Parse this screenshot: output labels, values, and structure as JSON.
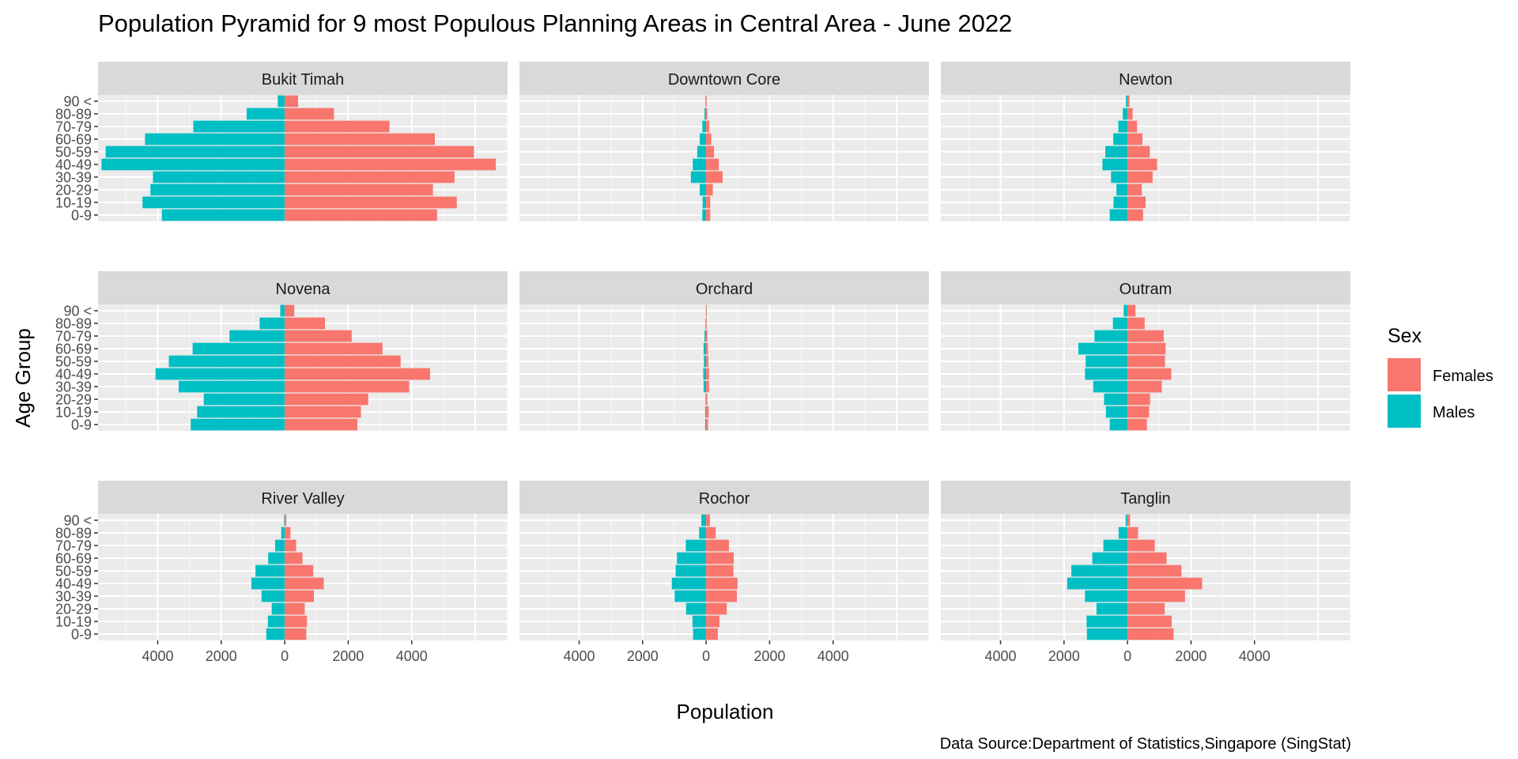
{
  "chart_data": {
    "type": "bar",
    "title": "Population Pyramid for 9 most Populous Planning Areas in Central Area - June 2022",
    "xlabel": "Population",
    "ylabel": "Age Group",
    "caption": "Data Source:Department of Statistics,Singapore (SingStat)",
    "orientation": "horizontal-diverging",
    "grid": true,
    "legend_position": "right",
    "legend": {
      "title": "Sex",
      "entries": [
        {
          "name": "Females",
          "color": "#F8766D"
        },
        {
          "name": "Males",
          "color": "#00BFC4"
        }
      ]
    },
    "x_ticks": [
      -4000,
      -2000,
      0,
      2000,
      4000
    ],
    "x_tick_labels": [
      "4000",
      "2000",
      "0",
      "2000",
      "4000"
    ],
    "xlim": [
      -5880,
      7020
    ],
    "categories": [
      "0-9",
      "10-19",
      "20-29",
      "30-39",
      "40-49",
      "50-59",
      "60-69",
      "70-79",
      "80-89",
      "90 <"
    ],
    "panels": [
      {
        "name": "Bukit Timah",
        "males": [
          3870,
          4480,
          4230,
          4150,
          5770,
          5640,
          4400,
          2880,
          1200,
          220
        ],
        "females": [
          4800,
          5420,
          4670,
          5350,
          6650,
          5960,
          4730,
          3300,
          1550,
          420
        ]
      },
      {
        "name": "Downtown Core",
        "males": [
          120,
          110,
          200,
          480,
          420,
          280,
          200,
          120,
          50,
          20
        ],
        "females": [
          130,
          130,
          210,
          520,
          400,
          250,
          160,
          100,
          40,
          15
        ]
      },
      {
        "name": "Newton",
        "males": [
          560,
          440,
          350,
          520,
          790,
          700,
          450,
          290,
          150,
          50
        ],
        "females": [
          490,
          570,
          450,
          790,
          930,
          700,
          470,
          300,
          160,
          60
        ]
      },
      {
        "name": "Novena",
        "males": [
          2960,
          2760,
          2550,
          3340,
          4070,
          3650,
          2900,
          1740,
          790,
          140
        ],
        "females": [
          2290,
          2400,
          2630,
          3920,
          4580,
          3650,
          3080,
          2110,
          1270,
          300
        ]
      },
      {
        "name": "Orchard",
        "males": [
          30,
          30,
          20,
          80,
          90,
          70,
          80,
          50,
          20,
          10
        ],
        "females": [
          60,
          80,
          40,
          90,
          90,
          70,
          60,
          40,
          20,
          10
        ]
      },
      {
        "name": "Outram",
        "males": [
          560,
          680,
          740,
          1080,
          1340,
          1320,
          1550,
          1040,
          460,
          120
        ],
        "females": [
          610,
          680,
          710,
          1080,
          1380,
          1180,
          1200,
          1140,
          540,
          250
        ]
      },
      {
        "name": "River Valley",
        "males": [
          580,
          530,
          410,
          730,
          1050,
          920,
          520,
          300,
          110,
          20
        ],
        "females": [
          680,
          700,
          630,
          920,
          1230,
          900,
          560,
          360,
          180,
          50
        ]
      },
      {
        "name": "Rochor",
        "males": [
          410,
          430,
          630,
          990,
          1080,
          960,
          920,
          640,
          220,
          150
        ],
        "females": [
          370,
          420,
          650,
          970,
          990,
          860,
          870,
          720,
          300,
          120
        ]
      },
      {
        "name": "Tanglin",
        "males": [
          1280,
          1290,
          980,
          1340,
          1900,
          1770,
          1110,
          760,
          280,
          60
        ],
        "females": [
          1450,
          1390,
          1170,
          1810,
          2350,
          1700,
          1230,
          860,
          330,
          80
        ]
      }
    ]
  }
}
